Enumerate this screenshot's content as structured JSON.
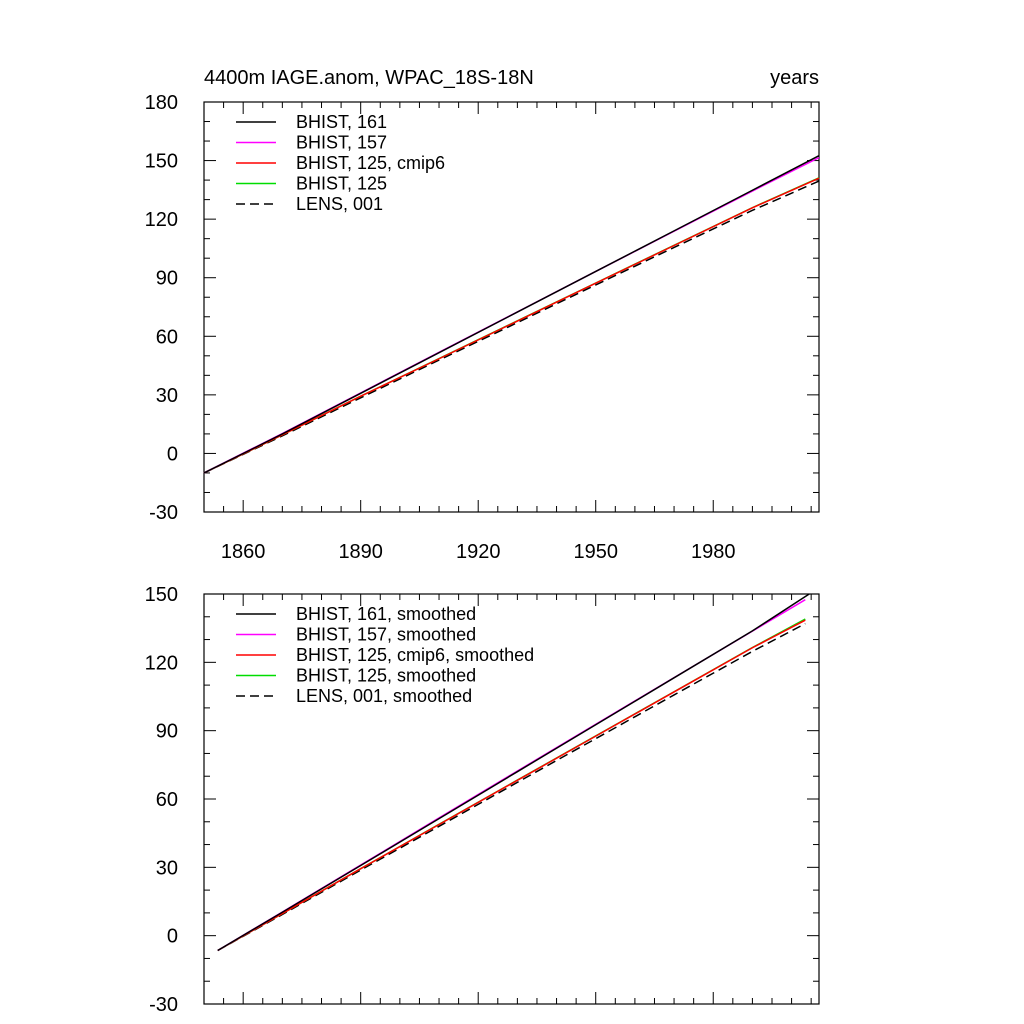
{
  "chart_data": [
    {
      "type": "line",
      "title_left": "4400m IAGE.anom, WPAC_18S-18N",
      "title_right": "years",
      "xlabel": "",
      "ylabel": "",
      "xlim": [
        1850,
        2007
      ],
      "ylim": [
        -30,
        180
      ],
      "xticks": [
        1860,
        1890,
        1920,
        1950,
        1980
      ],
      "xtick_labels": [
        "1860",
        "1890",
        "1920",
        "1950",
        "1980"
      ],
      "yticks": [
        -30,
        0,
        30,
        60,
        90,
        120,
        150,
        180
      ],
      "ytick_labels": [
        "-30",
        "0",
        "30",
        "60",
        "90",
        "120",
        "150",
        "180"
      ],
      "legend_position": "top-left",
      "series": [
        {
          "name": "BHIST, 161",
          "color": "#000000",
          "dashed": false,
          "x": [
            1850,
            1870,
            1890,
            1910,
            1930,
            1950,
            1970,
            1990,
            2007
          ],
          "values": [
            -10,
            10,
            30.8,
            51.6,
            72.4,
            93.2,
            114,
            134.8,
            152.5
          ]
        },
        {
          "name": "BHIST, 157",
          "color": "#ff00ff",
          "dashed": false,
          "x": [
            1850,
            1870,
            1890,
            1910,
            1930,
            1950,
            1970,
            1990,
            2007
          ],
          "values": [
            -10,
            10.2,
            31,
            51.8,
            72.5,
            93.2,
            113.8,
            134.4,
            151.5
          ]
        },
        {
          "name": "BHIST, 125, cmip6",
          "color": "#ff0000",
          "dashed": false,
          "x": [
            1850,
            1870,
            1890,
            1910,
            1930,
            1950,
            1970,
            1990,
            2007
          ],
          "values": [
            -10,
            9.5,
            29.3,
            48.5,
            67.8,
            87.2,
            106.5,
            125.8,
            141
          ]
        },
        {
          "name": "BHIST, 125",
          "color": "#00dd00",
          "dashed": false,
          "x": [
            1850,
            1870,
            1890,
            1910,
            1930,
            1950,
            1970,
            1990,
            2007
          ],
          "values": [
            -10,
            9.5,
            29.3,
            48.6,
            67.9,
            87.3,
            106.6,
            125.9,
            141.2
          ]
        },
        {
          "name": "LENS, 001",
          "color": "#000000",
          "dashed": true,
          "x": [
            1850,
            1870,
            1890,
            1910,
            1930,
            1950,
            1970,
            1990,
            2007
          ],
          "values": [
            -10,
            9,
            28.5,
            47.8,
            67,
            86.3,
            105.5,
            124.5,
            139.5
          ]
        }
      ]
    },
    {
      "type": "line",
      "title_left": "",
      "title_right": "",
      "xlabel": "",
      "ylabel": "",
      "xlim": [
        1850,
        2007
      ],
      "ylim": [
        -30,
        150
      ],
      "xticks": [
        1860,
        1890,
        1920,
        1950,
        1980
      ],
      "xtick_labels": [],
      "yticks": [
        -30,
        0,
        30,
        60,
        90,
        120,
        150
      ],
      "ytick_labels": [
        "-30",
        "0",
        "30",
        "60",
        "90",
        "120",
        "150"
      ],
      "legend_position": "top-left",
      "series": [
        {
          "name": "BHIST, 161, smoothed",
          "color": "#000000",
          "dashed": false,
          "x": [
            1853.5,
            1870,
            1890,
            1910,
            1930,
            1950,
            1970,
            1990,
            2004.5
          ],
          "values": [
            -6.5,
            10.3,
            30.8,
            51.4,
            72,
            92.6,
            113.2,
            133.8,
            150
          ]
        },
        {
          "name": "BHIST, 157, smoothed",
          "color": "#ff00ff",
          "dashed": false,
          "x": [
            1853.5,
            1870,
            1890,
            1910,
            1930,
            1950,
            1970,
            1990,
            2003.5
          ],
          "values": [
            -6.5,
            10.4,
            31,
            51.7,
            72.3,
            92.8,
            113.3,
            133.7,
            147.5
          ]
        },
        {
          "name": "BHIST, 125, cmip6, smoothed",
          "color": "#ff0000",
          "dashed": false,
          "x": [
            1853.5,
            1870,
            1890,
            1910,
            1930,
            1950,
            1970,
            1990,
            2003.5
          ],
          "values": [
            -6.5,
            9.7,
            29.4,
            48.8,
            68.2,
            87.6,
            107,
            126.4,
            138.5
          ]
        },
        {
          "name": "BHIST, 125, smoothed",
          "color": "#00dd00",
          "dashed": false,
          "x": [
            1853.5,
            1870,
            1890,
            1910,
            1930,
            1950,
            1970,
            1990,
            2003.5
          ],
          "values": [
            -6.5,
            9.7,
            29.4,
            48.9,
            68.3,
            87.7,
            107.1,
            126.5,
            139
          ]
        },
        {
          "name": "LENS, 001, smoothed",
          "color": "#000000",
          "dashed": true,
          "x": [
            1853.5,
            1870,
            1890,
            1910,
            1930,
            1950,
            1970,
            1990,
            2003.5
          ],
          "values": [
            -6.5,
            9.3,
            28.8,
            48,
            67.3,
            86.5,
            105.7,
            124.8,
            137
          ]
        }
      ]
    }
  ]
}
